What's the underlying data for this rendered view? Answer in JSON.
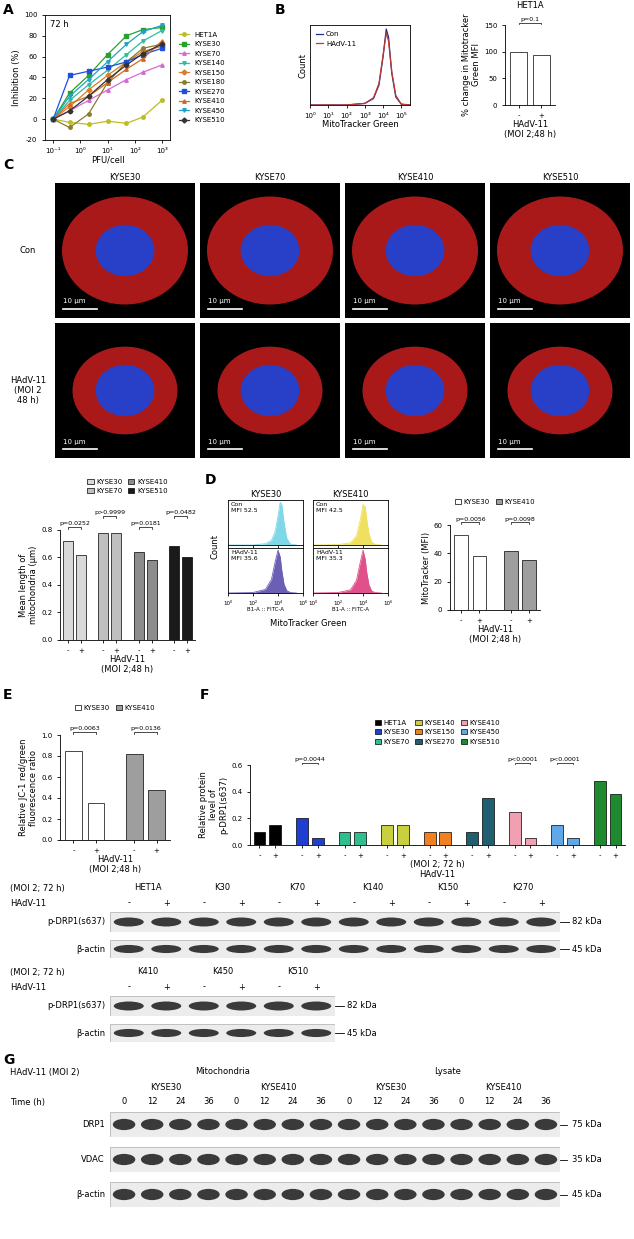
{
  "panel_labels": [
    "A",
    "B",
    "C",
    "D",
    "E",
    "F",
    "G"
  ],
  "chart_data": [
    {
      "type": "line",
      "title": "72 h",
      "xlabel": "PFU/cell",
      "ylabel": "Inhibition (%)",
      "log": "x",
      "x": [
        0.1,
        0.4,
        2,
        10,
        50,
        200,
        1000
      ],
      "xlim": [
        0.05,
        2000
      ],
      "xticks": [
        {
          "value": 0.1,
          "label": "10⁻¹"
        },
        {
          "value": 1,
          "label": "10⁰"
        },
        {
          "value": 10,
          "label": "10¹"
        },
        {
          "value": 100,
          "label": "10²"
        },
        {
          "value": 1000,
          "label": "10³"
        }
      ],
      "ylim": [
        -20,
        100
      ],
      "yticks": [
        -20,
        0,
        20,
        40,
        60,
        80,
        100
      ],
      "legend": "right",
      "series": [
        {
          "name": "HET1A",
          "color": "#bcbd22",
          "marker": "circle",
          "values": [
            0,
            -3,
            -5,
            -2,
            -4,
            2,
            18
          ]
        },
        {
          "name": "KYSE30",
          "color": "#2ca02c",
          "marker": "square",
          "values": [
            0,
            25,
            42,
            62,
            80,
            86,
            88
          ]
        },
        {
          "name": "KYSE70",
          "color": "#d36bd3",
          "marker": "triangle_up",
          "values": [
            0,
            8,
            18,
            28,
            38,
            45,
            52
          ]
        },
        {
          "name": "KYSE140",
          "color": "#2bbfa0",
          "marker": "triangle_down",
          "values": [
            0,
            18,
            33,
            47,
            62,
            75,
            85
          ]
        },
        {
          "name": "KYSE150",
          "color": "#e07b28",
          "marker": "diamond",
          "values": [
            0,
            12,
            28,
            42,
            55,
            65,
            70
          ]
        },
        {
          "name": "KYSE180",
          "color": "#8b7d2a",
          "marker": "circle",
          "values": [
            0,
            -8,
            5,
            35,
            55,
            68,
            72
          ]
        },
        {
          "name": "KYSE270",
          "color": "#1f4fe0",
          "marker": "square",
          "values": [
            0,
            42,
            46,
            50,
            55,
            62,
            68
          ]
        },
        {
          "name": "KYSE410",
          "color": "#d2691e",
          "marker": "triangle_up",
          "values": [
            0,
            15,
            22,
            35,
            48,
            58,
            75
          ]
        },
        {
          "name": "KYSE450",
          "color": "#1fa3c7",
          "marker": "triangle_down",
          "values": [
            0,
            22,
            38,
            55,
            72,
            84,
            90
          ]
        },
        {
          "name": "KYSE510",
          "color": "#333333",
          "marker": "diamond",
          "values": [
            0,
            8,
            22,
            38,
            52,
            63,
            72
          ]
        }
      ]
    },
    {
      "type": "line",
      "xlabel": "MitoTracker Green",
      "ylabel": "Count",
      "log": "x",
      "tick_labels": "x",
      "x": [
        1,
        100,
        1000,
        3000,
        6000,
        10000,
        15000,
        20000,
        30000,
        50000,
        100000,
        300000
      ],
      "xlim": [
        1,
        300000
      ],
      "xticks": [
        {
          "value": 1,
          "label": "10⁰"
        },
        {
          "value": 10,
          "label": "10¹"
        },
        {
          "value": 100,
          "label": "10²"
        },
        {
          "value": 1000,
          "label": "10³"
        },
        {
          "value": 10000,
          "label": "10⁴"
        },
        {
          "value": 100000,
          "label": "10⁵"
        }
      ],
      "ylim": [
        0,
        100
      ],
      "legend": "upper left",
      "series": [
        {
          "name": "Con",
          "color": "#1f2f8f",
          "values": [
            0,
            0,
            2,
            8,
            25,
            60,
            95,
            85,
            40,
            10,
            1,
            0
          ]
        },
        {
          "name": "HAdV-11",
          "color": "#c0392b",
          "values": [
            0,
            0,
            2,
            9,
            27,
            62,
            90,
            80,
            42,
            12,
            1,
            0
          ]
        }
      ]
    },
    {
      "type": "bar",
      "title": "HET1A",
      "ylabel": "% change in Mitotracker\nGreen MFI",
      "xlabel": "HAdV-11\n(MOI 2;48 h)",
      "categories": [
        "-",
        "+"
      ],
      "values": [
        100,
        93
      ],
      "color": "#ffffff",
      "annotation": "p=0.1",
      "ylim": [
        0,
        150
      ],
      "yticks": [
        0,
        50,
        100,
        150
      ]
    },
    {
      "type": "bar",
      "ylabel": "Mean length of\nmitochondria (μm)",
      "xlabel": "HAdV-11\n(MOI 2;48 h)",
      "categories": [
        "-",
        "+"
      ],
      "ylim": [
        0,
        0.8
      ],
      "yticks": [
        0.0,
        0.2,
        0.4,
        0.6,
        0.8
      ],
      "legend": "top",
      "series": [
        {
          "name": "KYSE30",
          "color": "#d9d9d9",
          "annotation": "p=0.0252",
          "values": [
            0.72,
            0.62
          ]
        },
        {
          "name": "KYSE70",
          "color": "#bfbfbf",
          "annotation": "p>0.9999",
          "values": [
            0.78,
            0.78
          ]
        },
        {
          "name": "KYSE410",
          "color": "#8c8c8c",
          "annotation": "p=0.0181",
          "values": [
            0.64,
            0.58
          ]
        },
        {
          "name": "KYSE510",
          "color": "#1a1a1a",
          "annotation": "p=0.0482",
          "values": [
            0.68,
            0.6
          ]
        }
      ]
    },
    {
      "type": "area",
      "title": "KYSE30",
      "xlabel": "B1-A :: FITC-A",
      "log": "x",
      "tick_labels": "x",
      "x": [
        1,
        100,
        1000,
        3000,
        6000,
        10000,
        15000,
        20000,
        30000,
        50000,
        100000,
        300000
      ],
      "xlim": [
        1,
        1000000
      ],
      "xticks": [
        {
          "value": 1,
          "label": "10⁰"
        },
        {
          "value": 100,
          "label": "10²"
        },
        {
          "value": 10000,
          "label": "10⁴"
        },
        {
          "value": 1000000,
          "label": "10⁶"
        }
      ],
      "ylim": [
        0,
        100
      ],
      "series": [
        {
          "name": "Con",
          "annotation": "MFI 52.5",
          "color": "#7fd8e8",
          "values": [
            0,
            0,
            3,
            10,
            30,
            65,
            95,
            90,
            50,
            15,
            2,
            0
          ]
        },
        {
          "name": "HAdV-11",
          "annotation": "MFI 35.6",
          "color": "#6b5fb5",
          "values": [
            0,
            1,
            8,
            30,
            70,
            95,
            80,
            50,
            20,
            5,
            1,
            0
          ]
        }
      ]
    },
    {
      "type": "area",
      "title": "KYSE410",
      "xlabel": "B1-A :: FITC-A",
      "log": "x",
      "tick_labels": "x",
      "x": [
        1,
        100,
        1000,
        3000,
        6000,
        10000,
        15000,
        20000,
        30000,
        50000,
        100000,
        300000
      ],
      "xlim": [
        1,
        1000000
      ],
      "xticks": [
        {
          "value": 1,
          "label": "10⁰"
        },
        {
          "value": 100,
          "label": "10²"
        },
        {
          "value": 10000,
          "label": "10⁴"
        },
        {
          "value": 1000000,
          "label": "10⁶"
        }
      ],
      "ylim": [
        0,
        100
      ],
      "series": [
        {
          "name": "Con",
          "annotation": "MFI 42.5",
          "color": "#f0e060",
          "values": [
            0,
            1,
            5,
            20,
            55,
            90,
            85,
            55,
            25,
            6,
            1,
            0
          ]
        },
        {
          "name": "HAdV-11",
          "annotation": "MFI 35.3",
          "color": "#e0508a",
          "values": [
            0,
            1,
            7,
            28,
            68,
            95,
            75,
            45,
            18,
            4,
            1,
            0
          ]
        }
      ]
    },
    {
      "type": "bar",
      "ylabel": "MitoTracker (MFI)",
      "xlabel": "HAdV-11\n(MOI 2;48 h)",
      "categories": [
        "-",
        "+"
      ],
      "ylim": [
        0,
        60
      ],
      "yticks": [
        0,
        20,
        40,
        60
      ],
      "legend": "top",
      "series": [
        {
          "name": "KYSE30",
          "color": "#ffffff",
          "annotation": "p=0.0056",
          "values": [
            53,
            38
          ]
        },
        {
          "name": "KYSE410",
          "color": "#9e9e9e",
          "annotation": "p=0.0098",
          "values": [
            42,
            35
          ]
        }
      ]
    },
    {
      "type": "bar",
      "ylabel": "Relative JC-1 red/green\nfluorescence ratio",
      "xlabel": "HAdV-11\n(MOI 2;48 h)",
      "categories": [
        "-",
        "+"
      ],
      "ylim": [
        0,
        1.0
      ],
      "yticks": [
        0.0,
        0.2,
        0.4,
        0.6,
        0.8,
        1.0
      ],
      "legend": "top",
      "series": [
        {
          "name": "KYSE30",
          "color": "#ffffff",
          "annotation": "p=0.0063",
          "values": [
            0.85,
            0.35
          ]
        },
        {
          "name": "KYSE410",
          "color": "#9e9e9e",
          "annotation": "p=0.0136",
          "values": [
            0.82,
            0.48
          ]
        }
      ]
    },
    {
      "type": "bar",
      "ylabel": "Relative protein\nlevel of\np-DRP1(s637)",
      "xlabel": "(MOI 2; 72 h)\nHAdV-11",
      "categories": [
        "-",
        "+"
      ],
      "ylim": [
        0,
        0.6
      ],
      "yticks": [
        0.0,
        0.2,
        0.4,
        0.6
      ],
      "legend": "top",
      "series": [
        {
          "name": "HET1A",
          "color": "#000000",
          "values": [
            0.1,
            0.15
          ]
        },
        {
          "name": "KYSE30",
          "color": "#1f3fd0",
          "annotation": "p=0.0044",
          "values": [
            0.2,
            0.05
          ]
        },
        {
          "name": "KYSE70",
          "color": "#2fbf8f",
          "values": [
            0.1,
            0.1
          ]
        },
        {
          "name": "KYSE140",
          "color": "#c8d040",
          "values": [
            0.15,
            0.15
          ]
        },
        {
          "name": "KYSE150",
          "color": "#f08020",
          "values": [
            0.1,
            0.1
          ]
        },
        {
          "name": "KYSE270",
          "color": "#1f5f6f",
          "values": [
            0.1,
            0.35
          ]
        },
        {
          "name": "KYSE410",
          "color": "#f0a0b0",
          "annotation": "p<0.0001",
          "values": [
            0.25,
            0.05
          ]
        },
        {
          "name": "KYSE450",
          "color": "#60a8e8",
          "annotation": "p<0.0001",
          "values": [
            0.15,
            0.05
          ]
        },
        {
          "name": "KYSE510",
          "color": "#208a30",
          "values": [
            0.48,
            0.38
          ]
        }
      ]
    }
  ],
  "D_axis_titles": {
    "x": "MitoTracker Green",
    "y": "Count"
  },
  "micrographs": {
    "columns": [
      "KYSE30",
      "KYSE70",
      "KYSE410",
      "KYSE510"
    ],
    "rows": [
      "Con",
      "HAdV-11\n(MOI 2\n48 h)"
    ],
    "scale_bar": "10 μm"
  },
  "blots": [
    {
      "header": "(MOI 2; 72 h)",
      "treatment": "HAdV-11",
      "groups": [
        "HET1A",
        "K30",
        "K70",
        "K140",
        "K150",
        "K270"
      ],
      "lanes": [
        "-",
        "+"
      ],
      "rows": [
        {
          "name": "p-DRP1(s637)",
          "size": "82 kDa"
        },
        {
          "name": "β-actin",
          "size": "45 kDa"
        }
      ]
    },
    {
      "header": "(MOI 2; 72 h)",
      "treatment": "HAdV-11",
      "groups": [
        "K410",
        "K450",
        "K510"
      ],
      "lanes": [
        "-",
        "+"
      ],
      "rows": [
        {
          "name": "p-DRP1(s637)",
          "size": "82 kDa"
        },
        {
          "name": "β-actin",
          "size": "45 kDa"
        }
      ]
    },
    {
      "header": "HAdV-11 (MOI 2)",
      "sections": [
        "Mitochondria",
        "Lysate"
      ],
      "groups": [
        "KYSE30",
        "KYSE410"
      ],
      "lane_title": "Time (h)",
      "lanes": [
        0,
        12,
        24,
        36
      ],
      "rows": [
        {
          "name": "DRP1",
          "size": "75 kDa"
        },
        {
          "name": "VDAC",
          "size": "35 kDa"
        },
        {
          "name": "β-actin",
          "size": "45 kDa"
        }
      ]
    }
  ]
}
